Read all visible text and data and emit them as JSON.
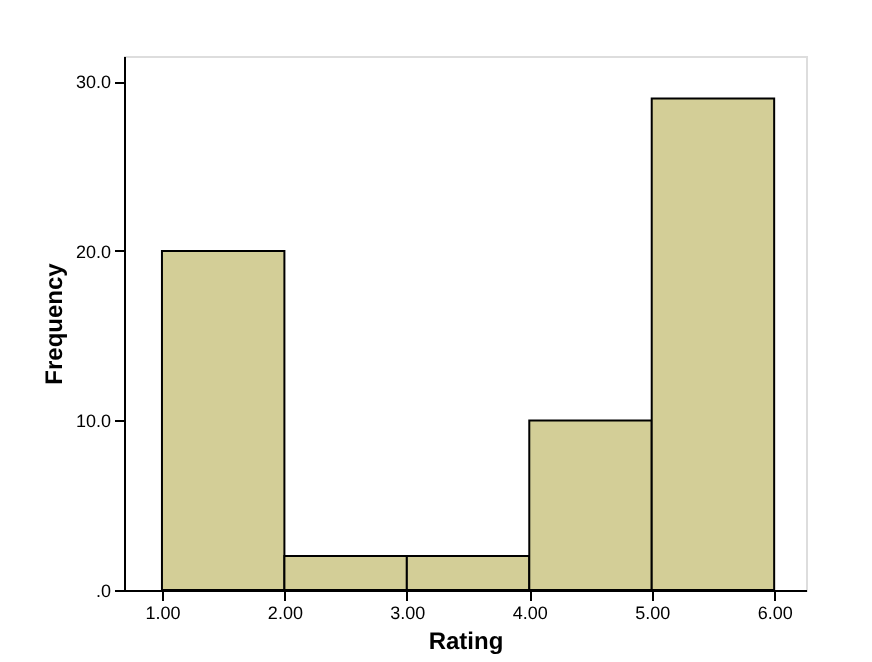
{
  "chart_data": {
    "type": "histogram",
    "xlabel": "Rating",
    "ylabel": "Frequency",
    "bins": [
      1,
      2,
      3,
      4,
      5,
      6
    ],
    "values": [
      20,
      2,
      2,
      10,
      29
    ],
    "color": "#d3ce97",
    "xlim": [
      0.69,
      6.26
    ],
    "xticks": [
      {
        "value": 1,
        "label": "1.00"
      },
      {
        "value": 2,
        "label": "2.00"
      },
      {
        "value": 3,
        "label": "3.00"
      },
      {
        "value": 4,
        "label": "4.00"
      },
      {
        "value": 5,
        "label": "5.00"
      },
      {
        "value": 6,
        "label": "6.00"
      }
    ],
    "ylim": [
      0,
      31.5
    ],
    "yticks": [
      {
        "value": 0,
        "label": ".0"
      },
      {
        "value": 10,
        "label": "10.0"
      },
      {
        "value": 20,
        "label": "20.0"
      },
      {
        "value": 30,
        "label": "30.0"
      }
    ],
    "grid": false
  }
}
